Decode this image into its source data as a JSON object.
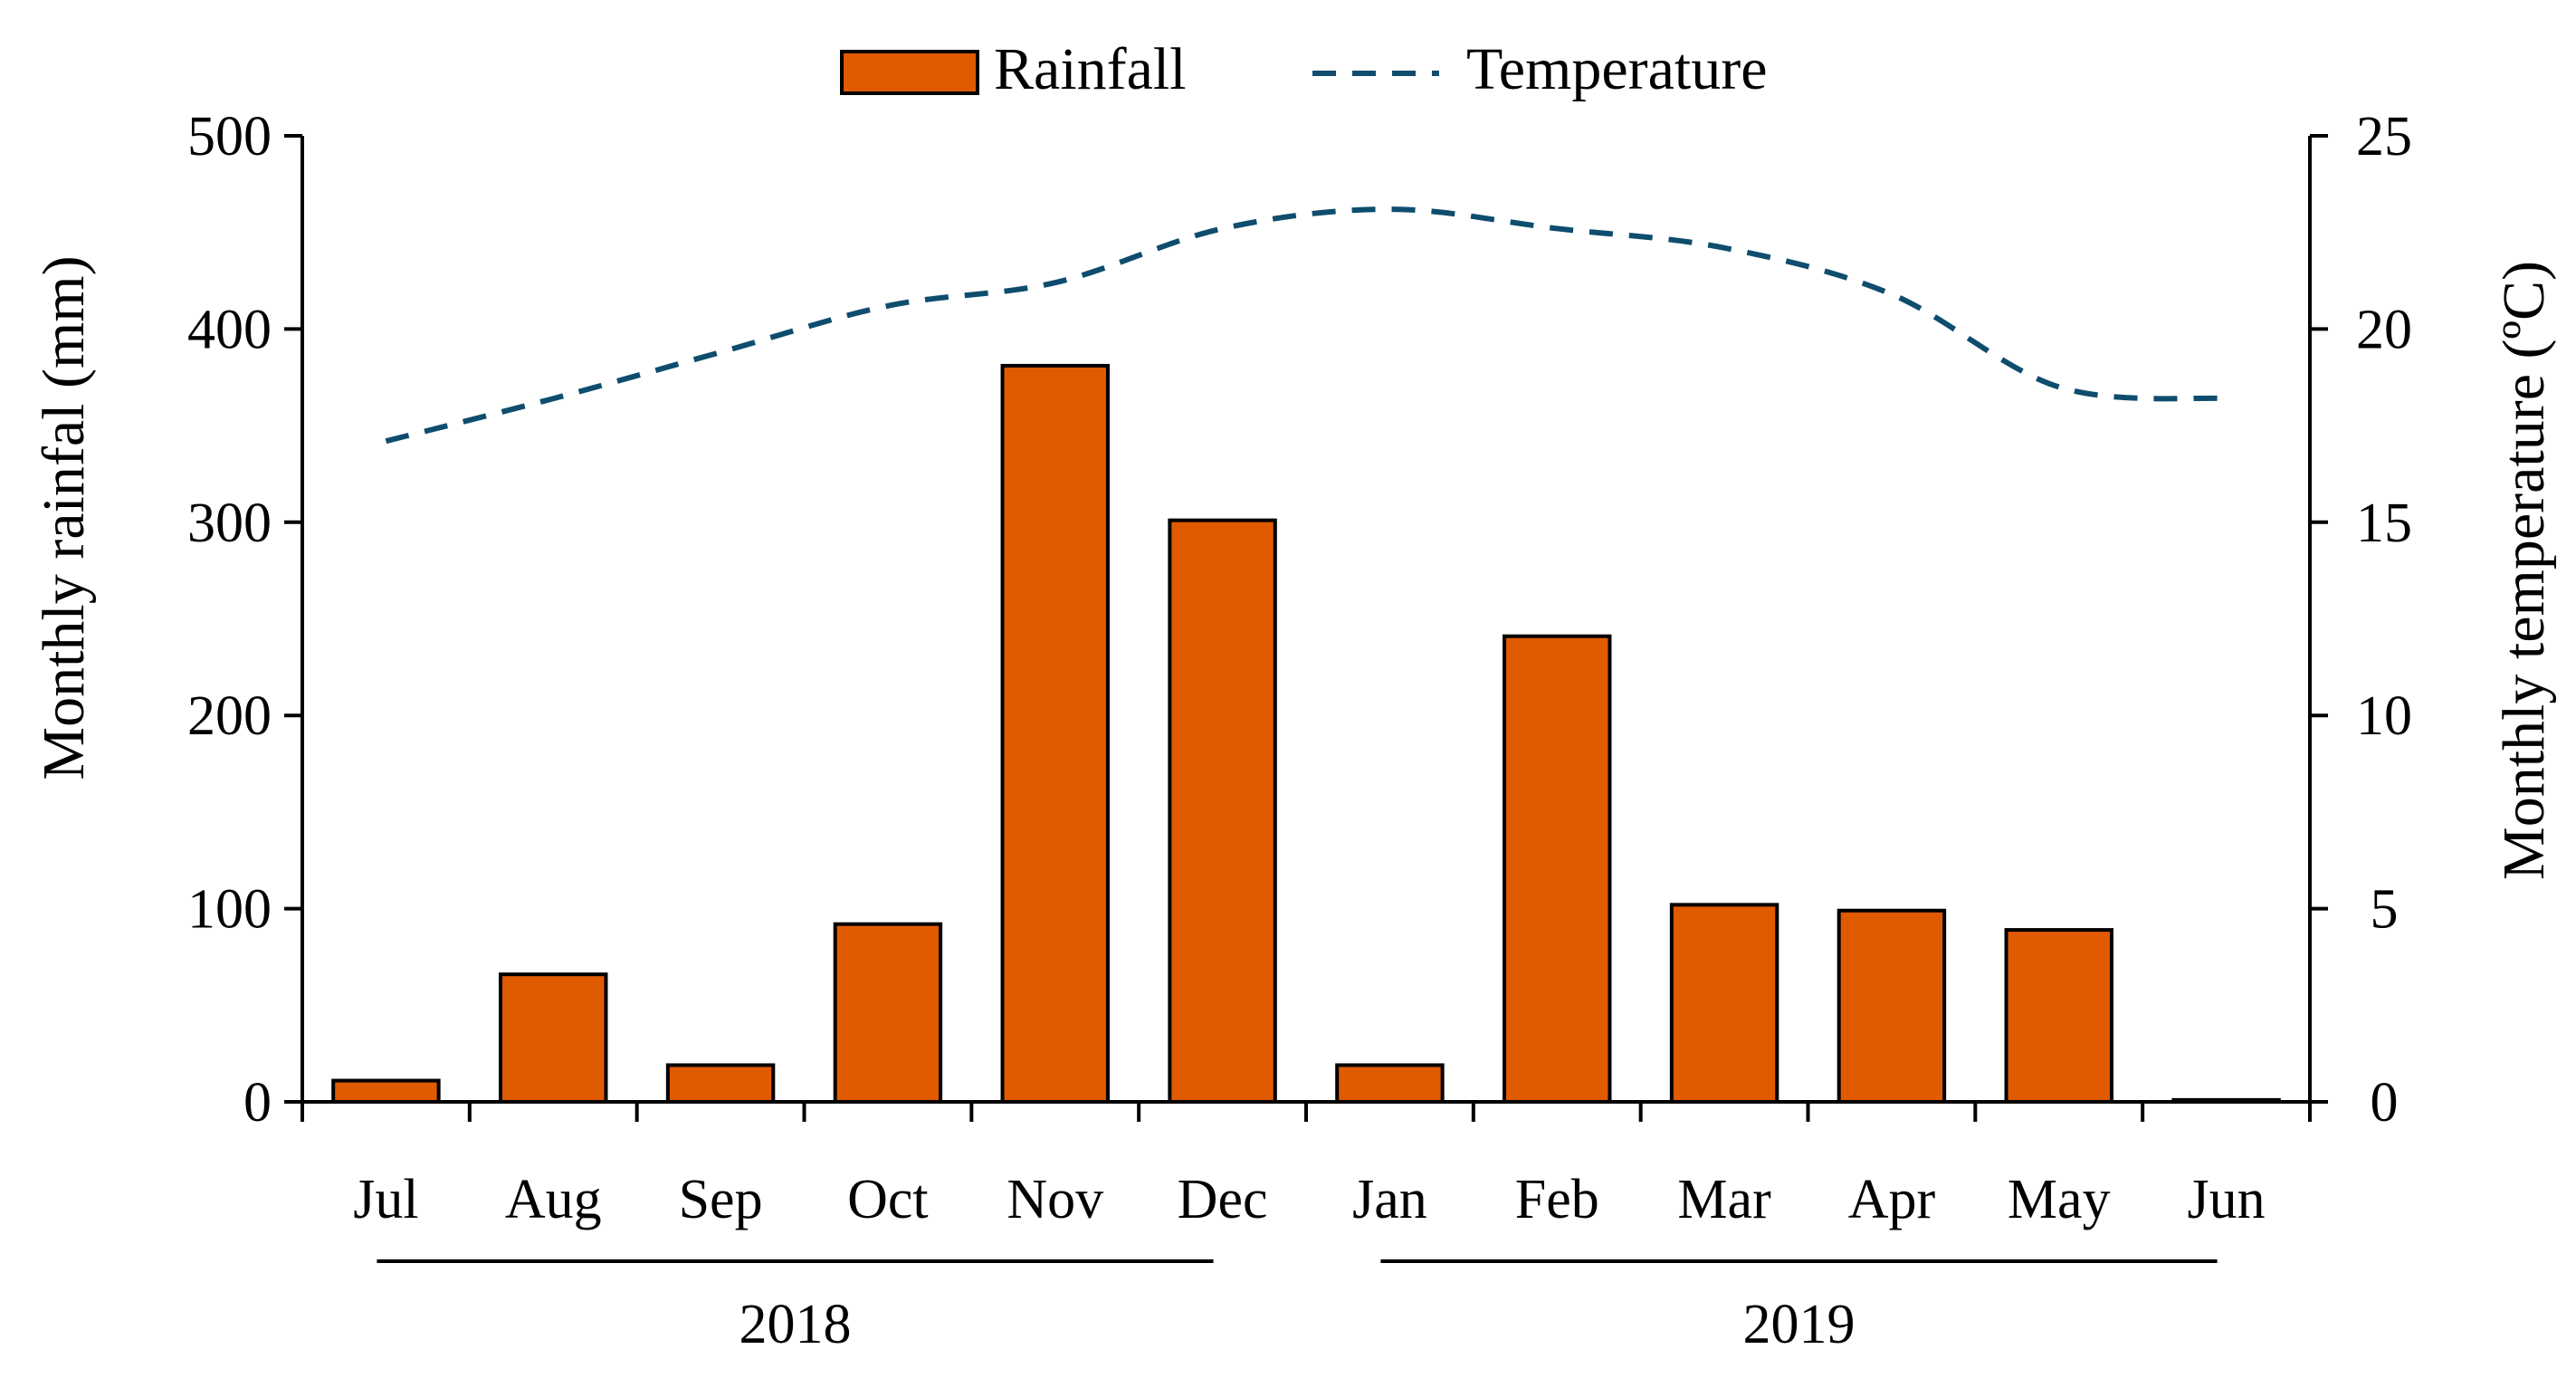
{
  "chart_data": {
    "type": "bar",
    "categories": [
      "Jul",
      "Aug",
      "Sep",
      "Oct",
      "Nov",
      "Dec",
      "Jan",
      "Feb",
      "Mar",
      "Apr",
      "May",
      "Jun"
    ],
    "series": [
      {
        "name": "Rainfall",
        "type": "bar",
        "axis": "left",
        "values": [
          11,
          66,
          19,
          92,
          381,
          301,
          19,
          241,
          102,
          99,
          89,
          1
        ]
      },
      {
        "name": "Temperature",
        "type": "line",
        "axis": "right",
        "style": "dashed",
        "values": [
          17.1,
          18.2,
          19.4,
          20.6,
          21.2,
          22.6,
          23.1,
          22.6,
          22.1,
          20.9,
          18.5,
          18.2
        ]
      }
    ],
    "ylabel": "Monthly rainfal (mm)",
    "ylabel_right": "Monthly temperature (ºC)",
    "ylim": [
      0,
      500
    ],
    "ylim_right": [
      0,
      25
    ],
    "yticks": [
      "0",
      "100",
      "200",
      "300",
      "400",
      "500"
    ],
    "yticks_right": [
      "0",
      "5",
      "10",
      "15",
      "20",
      "25"
    ],
    "groups": [
      {
        "label": "2018",
        "from": 0,
        "to": 5
      },
      {
        "label": "2019",
        "from": 6,
        "to": 11
      }
    ],
    "legend": {
      "position": "top-center",
      "entries": [
        "Rainfall",
        "Temperature"
      ]
    },
    "grid": false,
    "colors": {
      "bar_fill": "#E05A00",
      "bar_stroke": "#000000",
      "line": "#0E4D6E"
    }
  }
}
